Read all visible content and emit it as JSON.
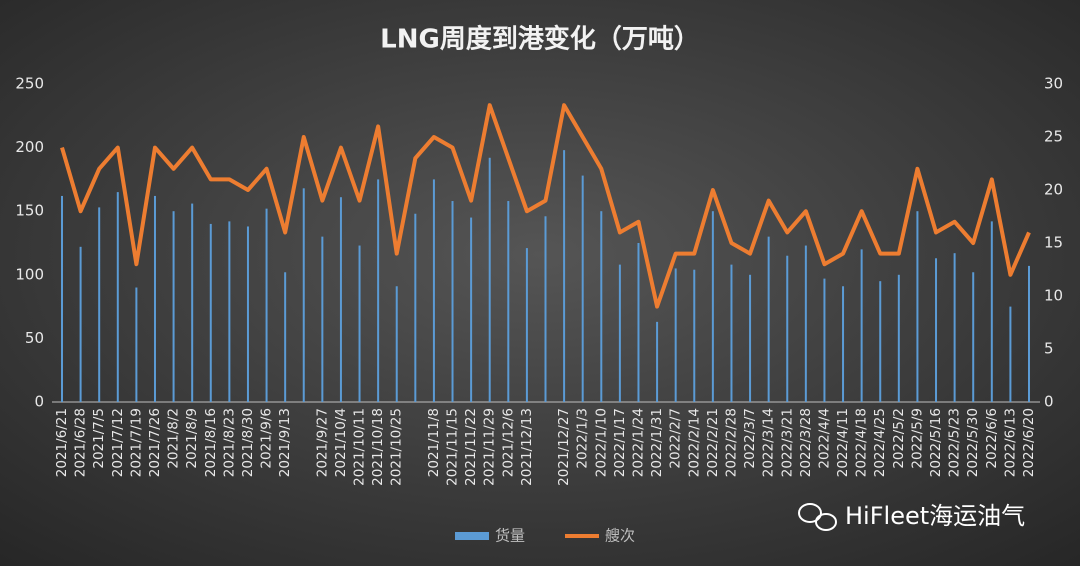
{
  "chart_data": {
    "type": "bar_line",
    "title": "LNG周度到港变化（万吨）",
    "categories": [
      "2021/6/21",
      "2021/6/28",
      "2021/7/5",
      "2021/7/12",
      "2021/7/19",
      "2021/7/26",
      "2021/8/2",
      "2021/8/9",
      "2021/8/16",
      "2021/8/23",
      "2021/8/30",
      "2021/9/6",
      "2021/9/13",
      null,
      "2021/9/27",
      "2021/10/4",
      "2021/10/11",
      "2021/10/18",
      "2021/10/25",
      null,
      "2021/11/8",
      "2021/11/15",
      "2021/11/22",
      "2021/11/29",
      "2021/12/6",
      "2021/12/13",
      null,
      "2021/12/27",
      "2022/1/3",
      "2022/1/10",
      "2022/1/17",
      "2022/1/24",
      "2022/1/31",
      "2022/2/7",
      "2022/2/14",
      "2022/2/21",
      "2022/2/28",
      "2022/3/7",
      "2022/3/14",
      "2022/3/21",
      "2022/3/28",
      "2022/4/4",
      "2022/4/11",
      "2022/4/18",
      "2022/4/25",
      "2022/5/2",
      "2022/5/9",
      "2022/5/16",
      "2022/5/23",
      "2022/5/30",
      "2022/6/6",
      "2022/6/13",
      "2022/6/20"
    ],
    "series": [
      {
        "name": "货量",
        "type": "bar",
        "color": "#5b9bd5",
        "values": [
          162,
          122,
          153,
          165,
          90,
          162,
          150,
          156,
          140,
          142,
          138,
          152,
          102,
          168,
          130,
          161,
          123,
          175,
          91,
          148,
          175,
          158,
          145,
          192,
          158,
          121,
          146,
          198,
          178,
          150,
          108,
          125,
          63,
          105,
          104,
          150,
          108,
          100,
          130,
          115,
          123,
          97,
          91,
          120,
          95,
          100,
          150,
          113,
          117,
          102,
          142,
          75,
          107
        ]
      },
      {
        "name": "艘次",
        "type": "line",
        "axis": "y2",
        "color": "#ed7d31",
        "values": [
          24,
          18,
          22,
          24,
          13,
          24,
          22,
          24,
          21,
          21,
          20,
          22,
          16,
          25,
          19,
          24,
          19,
          26,
          14,
          23,
          25,
          24,
          19,
          28,
          23,
          18,
          19,
          28,
          25,
          22,
          16,
          17,
          9,
          14,
          14,
          20,
          15,
          14,
          19,
          16,
          18,
          13,
          14,
          18,
          14,
          14,
          22,
          16,
          17,
          15,
          21,
          12,
          16
        ]
      }
    ],
    "ylim": [
      0,
      250
    ],
    "yticks": [
      0,
      50,
      100,
      150,
      200,
      250
    ],
    "y2lim": [
      0,
      30
    ],
    "y2ticks": [
      0,
      5,
      10,
      15,
      20,
      25,
      30
    ],
    "legend": "bottom",
    "watermark": "HiFleet海运油气"
  }
}
